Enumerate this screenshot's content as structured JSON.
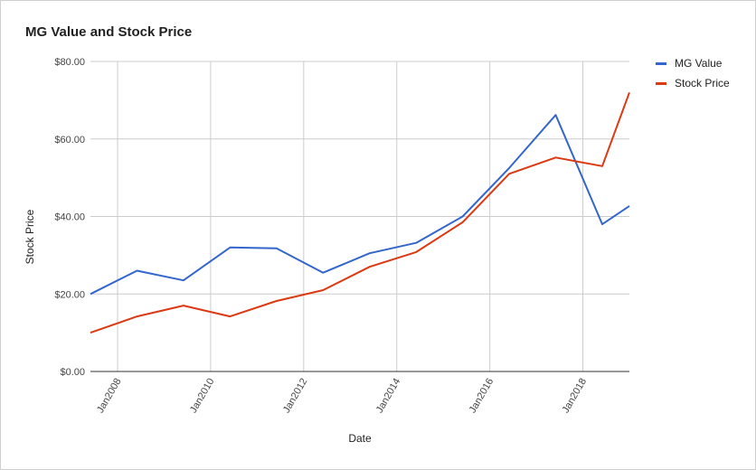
{
  "chart_data": {
    "type": "line",
    "title": "MG Value and Stock Price",
    "xlabel": "Date",
    "ylabel": "Stock Price",
    "x": [
      "2007-06",
      "2008-06",
      "2009-06",
      "2010-06",
      "2011-06",
      "2012-06",
      "2013-06",
      "2014-06",
      "2015-06",
      "2016-06",
      "2017-06",
      "2018-06",
      "2019-01"
    ],
    "series": [
      {
        "name": "MG Value",
        "color": "#3366cc",
        "values": [
          20.0,
          26.0,
          23.5,
          32.0,
          31.8,
          25.5,
          30.5,
          33.2,
          40.0,
          52.5,
          66.2,
          38.0,
          42.7
        ]
      },
      {
        "name": "Stock Price",
        "color": "#dc3912",
        "values": [
          10.0,
          14.2,
          17.0,
          14.2,
          18.2,
          21.0,
          27.0,
          30.8,
          38.5,
          51.0,
          55.2,
          53.0,
          72.0
        ]
      }
    ],
    "yticks": [
      "$0.00",
      "$20.00",
      "$40.00",
      "$60.00",
      "$80.00"
    ],
    "ytick_values": [
      0,
      20,
      40,
      60,
      80
    ],
    "xticks": [
      "Jan2008",
      "Jan2010",
      "Jan2012",
      "Jan2014",
      "Jan2016",
      "Jan2018"
    ],
    "xtick_dates": [
      "2008-01",
      "2010-01",
      "2012-01",
      "2014-01",
      "2016-01",
      "2018-01"
    ],
    "ylim": [
      0,
      80
    ],
    "xlim": [
      "2007-06",
      "2019-01"
    ],
    "grid": true,
    "legend": "right"
  }
}
